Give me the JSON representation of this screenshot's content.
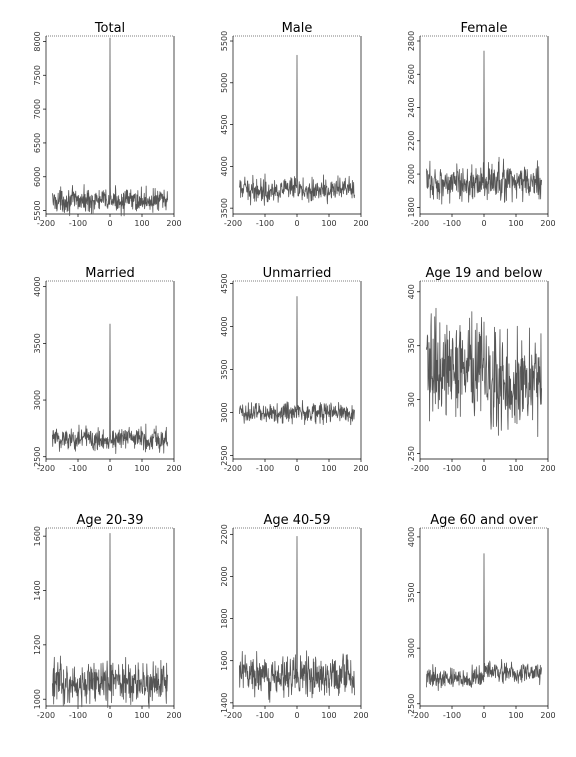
{
  "chart_data": [
    {
      "type": "line",
      "title": "Total",
      "xlim": [
        -200,
        200
      ],
      "ylim": [
        5450,
        8080
      ],
      "xticks": [
        -200,
        -100,
        0,
        100,
        200
      ],
      "yticks": [
        5500,
        6000,
        6500,
        7000,
        7500,
        8000
      ],
      "baseline": 5650,
      "noise": 85,
      "spike": 8050,
      "after_level": 5650
    },
    {
      "type": "line",
      "title": "Male",
      "xlim": [
        -200,
        200
      ],
      "ylim": [
        3430,
        5560
      ],
      "xticks": [
        -200,
        -100,
        0,
        100,
        200
      ],
      "yticks": [
        3500,
        4000,
        4500,
        5000,
        5500
      ],
      "baseline": 3720,
      "noise": 70,
      "spike": 5330,
      "after_level": 3720
    },
    {
      "type": "line",
      "title": "Female",
      "xlim": [
        -200,
        200
      ],
      "ylim": [
        1760,
        2830
      ],
      "xticks": [
        -200,
        -100,
        0,
        100,
        200
      ],
      "yticks": [
        1800,
        2000,
        2200,
        2400,
        2600,
        2800
      ],
      "baseline": 1950,
      "noise": 55,
      "spike": 2740,
      "after_level": 1950
    },
    {
      "type": "line",
      "title": "Married",
      "xlim": [
        -200,
        200
      ],
      "ylim": [
        2480,
        4050
      ],
      "xticks": [
        -200,
        -100,
        0,
        100,
        200
      ],
      "yticks": [
        2500,
        3000,
        3500,
        4000
      ],
      "baseline": 2660,
      "noise": 55,
      "spike": 3670,
      "after_level": 2660
    },
    {
      "type": "line",
      "title": "Unmarried",
      "xlim": [
        -200,
        200
      ],
      "ylim": [
        2460,
        4530
      ],
      "xticks": [
        -200,
        -100,
        0,
        100,
        200
      ],
      "yticks": [
        2500,
        3000,
        3500,
        4000,
        4500
      ],
      "baseline": 3000,
      "noise": 60,
      "spike": 4350,
      "after_level": 3000
    },
    {
      "type": "line",
      "title": "Age 19 and below",
      "xlim": [
        -200,
        200
      ],
      "ylim": [
        245,
        410
      ],
      "xticks": [
        -200,
        -100,
        0,
        100,
        200
      ],
      "yticks": [
        250,
        300,
        350,
        400
      ],
      "baseline": 330,
      "noise": 22,
      "spike": 372,
      "after_level": 318
    },
    {
      "type": "line",
      "title": "Age 20-39",
      "xlim": [
        -200,
        200
      ],
      "ylim": [
        975,
        1630
      ],
      "xticks": [
        -200,
        -100,
        0,
        100,
        200
      ],
      "yticks": [
        1000,
        1200,
        1400,
        1600
      ],
      "baseline": 1060,
      "noise": 38,
      "spike": 1610,
      "after_level": 1060
    },
    {
      "type": "line",
      "title": "Age 40-59",
      "xlim": [
        -200,
        200
      ],
      "ylim": [
        1385,
        2230
      ],
      "xticks": [
        -200,
        -100,
        0,
        100,
        200
      ],
      "yticks": [
        1400,
        1600,
        1800,
        2000,
        2200
      ],
      "baseline": 1530,
      "noise": 45,
      "spike": 2190,
      "after_level": 1530
    },
    {
      "type": "line",
      "title": "Age 60 and over",
      "xlim": [
        -200,
        200
      ],
      "ylim": [
        2480,
        4080
      ],
      "xticks": [
        -200,
        -100,
        0,
        100,
        200
      ],
      "yticks": [
        2500,
        3000,
        3500,
        4000
      ],
      "baseline": 2730,
      "noise": 45,
      "spike": 3850,
      "after_level": 2780
    }
  ]
}
